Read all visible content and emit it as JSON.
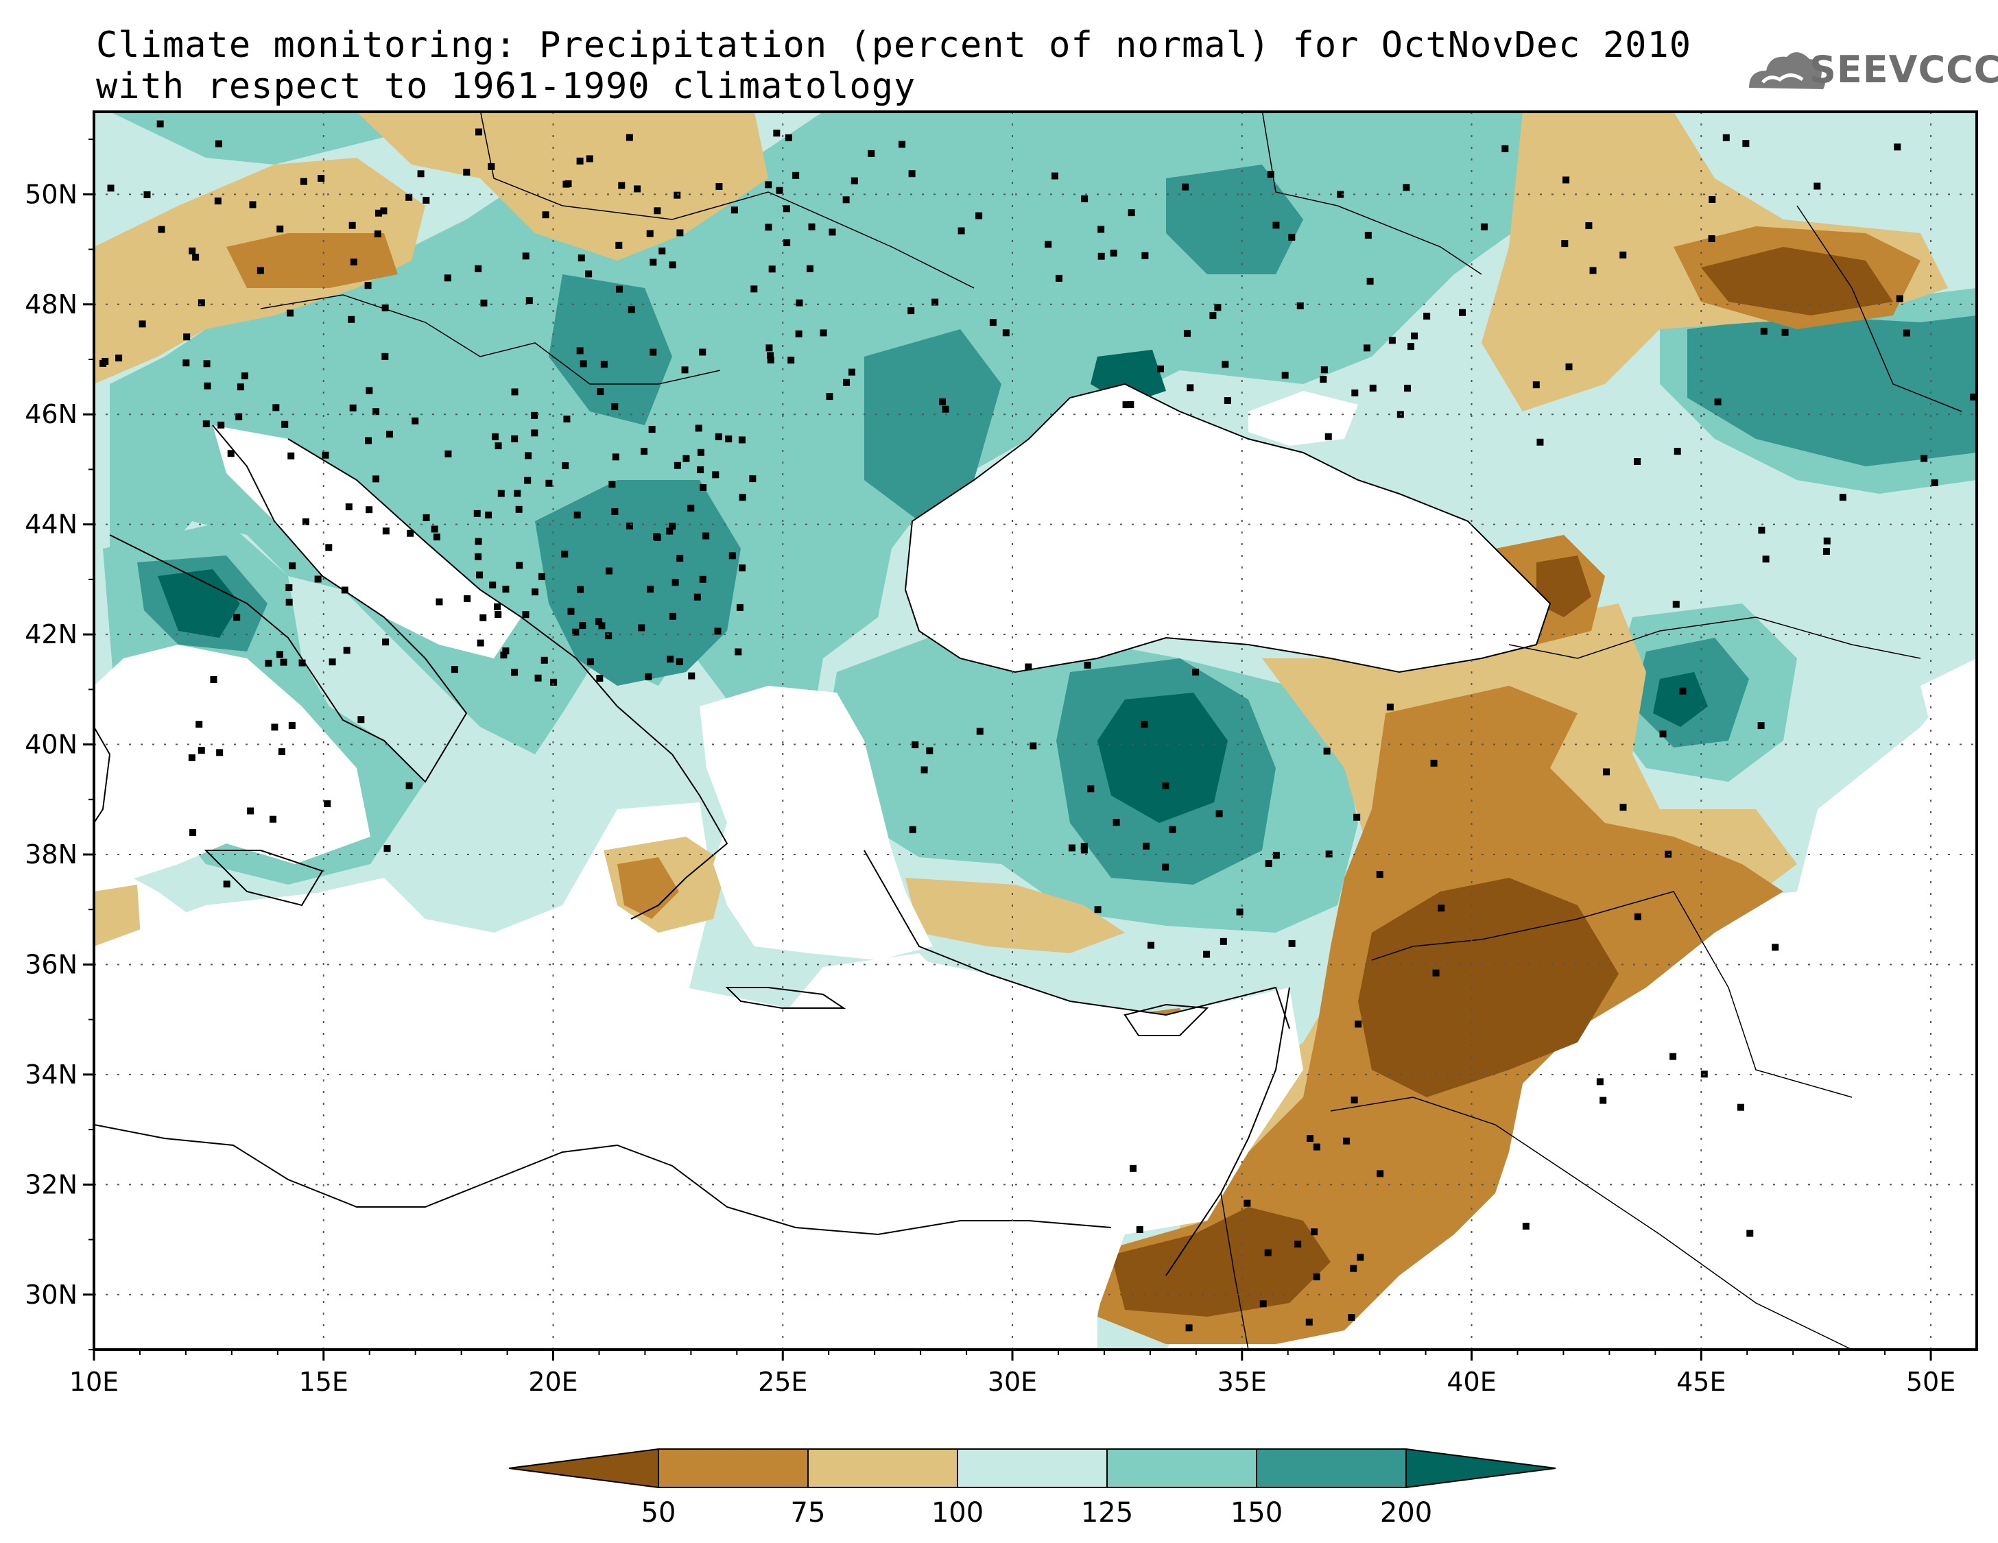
{
  "title": {
    "line1": "Climate monitoring: Precipitation (percent of normal) for OctNovDec 2010",
    "line2": "with respect to 1961-1990 climatology"
  },
  "logo": {
    "text": "SEEVCCC",
    "icon": "cloud-icon"
  },
  "axes": {
    "lon_labels": [
      "10E",
      "15E",
      "20E",
      "25E",
      "30E",
      "35E",
      "40E",
      "45E",
      "50E"
    ],
    "lat_labels": [
      "50N",
      "48N",
      "46N",
      "44N",
      "42N",
      "40N",
      "38N",
      "36N",
      "34N",
      "32N",
      "30N"
    ],
    "lon_range": [
      10,
      51
    ],
    "lat_range": [
      29,
      51.5
    ]
  },
  "colorbar": {
    "labels": [
      "50",
      "75",
      "100",
      "125",
      "150",
      "200"
    ],
    "colors": [
      "#8c5412",
      "#c08634",
      "#dfc27d",
      "#c7eae5",
      "#80cdc1",
      "#35978f",
      "#01665e"
    ]
  },
  "legend_classes": [
    {
      "range": "<50",
      "color": "#8c5412"
    },
    {
      "range": "50-75",
      "color": "#c08634"
    },
    {
      "range": "75-100",
      "color": "#dfc27d"
    },
    {
      "range": "100-125",
      "color": "#c7eae5"
    },
    {
      "range": "125-150",
      "color": "#80cdc1"
    },
    {
      "range": "150-200",
      "color": "#35978f"
    },
    {
      "range": ">200",
      "color": "#01665e"
    }
  ]
}
